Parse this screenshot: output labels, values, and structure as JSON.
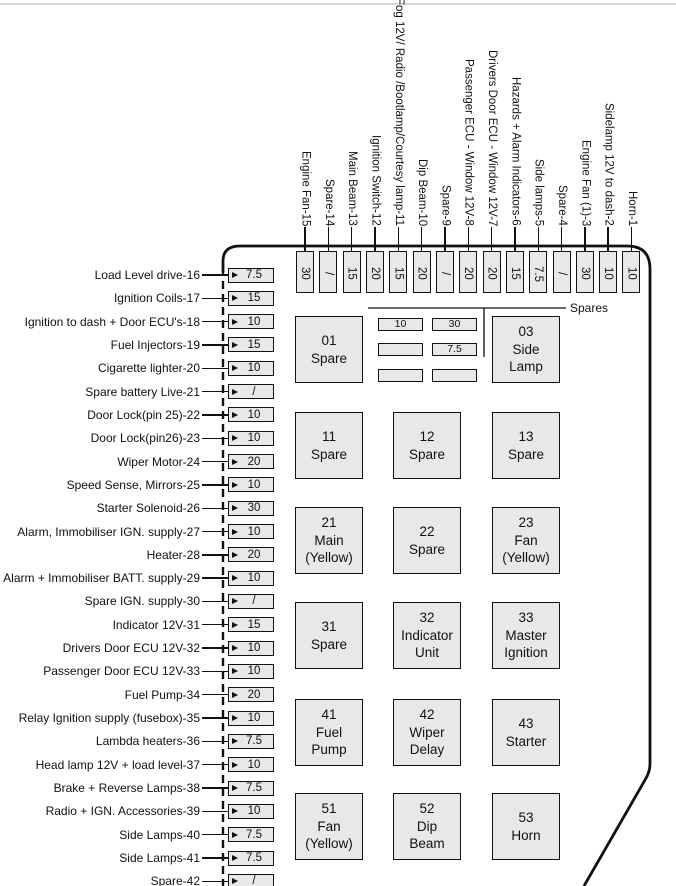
{
  "diagram": {
    "spares_label": "Spares",
    "colors": {
      "box_fill": "#e8e8e8",
      "line": "#111111",
      "page_rule": "#d9d9d9"
    },
    "left_fuses": [
      {
        "label": "Load Level drive-16",
        "value": "7.5"
      },
      {
        "label": "Ignition Coils-17",
        "value": "15"
      },
      {
        "label": "Ignition to dash + Door ECU's-18",
        "value": "10"
      },
      {
        "label": "Fuel Injectors-19",
        "value": "15"
      },
      {
        "label": "Cigarette lighter-20",
        "value": "10"
      },
      {
        "label": "Spare battery Live-21",
        "value": "/"
      },
      {
        "label": "Door Lock(pin 25)-22",
        "value": "10"
      },
      {
        "label": "Door Lock(pin26)-23",
        "value": "10"
      },
      {
        "label": "Wiper Motor-24",
        "value": "20"
      },
      {
        "label": "Speed Sense, Mirrors-25",
        "value": "10"
      },
      {
        "label": "Starter Solenoid-26",
        "value": "30"
      },
      {
        "label": "Alarm, Immobiliser IGN. supply-27",
        "value": "10"
      },
      {
        "label": "Heater-28",
        "value": "20"
      },
      {
        "label": "Alarm + Immobiliser BATT. supply-29",
        "value": "10"
      },
      {
        "label": "Spare IGN. supply-30",
        "value": "/"
      },
      {
        "label": "Indicator 12V-31",
        "value": "15"
      },
      {
        "label": "Drivers Door ECU 12V-32",
        "value": "10"
      },
      {
        "label": "Passenger Door ECU 12V-33",
        "value": "10"
      },
      {
        "label": "Fuel Pump-34",
        "value": "20"
      },
      {
        "label": "Relay Ignition supply (fusebox)-35",
        "value": "10"
      },
      {
        "label": "Lambda heaters-36",
        "value": "7.5"
      },
      {
        "label": "Head lamp 12V + load level-37",
        "value": "10"
      },
      {
        "label": "Brake + Reverse Lamps-38",
        "value": "7.5"
      },
      {
        "label": "Radio + IGN. Accessories-39",
        "value": "10"
      },
      {
        "label": "Side Lamps-40",
        "value": "7.5"
      },
      {
        "label": "Side Lamps-41",
        "value": "7.5"
      },
      {
        "label": "Spare-42",
        "value": "/"
      }
    ],
    "top_fuses": [
      {
        "label": "Engine Fan-15",
        "value": "30"
      },
      {
        "label": "Spare-14",
        "value": "/"
      },
      {
        "label": "Main Beam-13",
        "value": "15"
      },
      {
        "label": "Ignition Switch-12",
        "value": "20"
      },
      {
        "label": "Fog 12V/ Radio /Bootlamp/Courtesy lamp-11",
        "value": "15"
      },
      {
        "label": "Dip Beam-10",
        "value": "20"
      },
      {
        "label": "Spare-9",
        "value": "/"
      },
      {
        "label": "Passenger ECU - Window 12V-8",
        "value": "20"
      },
      {
        "label": "Drivers Door ECU - Window 12V-7",
        "value": "20"
      },
      {
        "label": "Hazards + Alarm Indicators-6",
        "value": "15"
      },
      {
        "label": "Side lamps-5",
        "value": "7.5"
      },
      {
        "label": "Spare-4",
        "value": "/"
      },
      {
        "label": "Engine Fan (1)-3",
        "value": "30"
      },
      {
        "label": "Sidelamp 12V to dash-2",
        "value": "10"
      },
      {
        "label": "Horn-1",
        "value": "10"
      }
    ],
    "relays": [
      {
        "id": "01",
        "lines": [
          "Spare"
        ],
        "col": 0,
        "row": 0
      },
      {
        "id": "03",
        "lines": [
          "Side",
          "Lamp"
        ],
        "col": 2,
        "row": 0
      },
      {
        "id": "11",
        "lines": [
          "Spare"
        ],
        "col": 0,
        "row": 1
      },
      {
        "id": "12",
        "lines": [
          "Spare"
        ],
        "col": 1,
        "row": 1
      },
      {
        "id": "13",
        "lines": [
          "Spare"
        ],
        "col": 2,
        "row": 1
      },
      {
        "id": "21",
        "lines": [
          "Main",
          "(Yellow)"
        ],
        "col": 0,
        "row": 2
      },
      {
        "id": "22",
        "lines": [
          "Spare"
        ],
        "col": 1,
        "row": 2
      },
      {
        "id": "23",
        "lines": [
          "Fan",
          "(Yellow)"
        ],
        "col": 2,
        "row": 2
      },
      {
        "id": "31",
        "lines": [
          "Spare"
        ],
        "col": 0,
        "row": 3
      },
      {
        "id": "32",
        "lines": [
          "Indicator",
          "Unit"
        ],
        "col": 1,
        "row": 3
      },
      {
        "id": "33",
        "lines": [
          "Master",
          "Ignition"
        ],
        "col": 2,
        "row": 3
      },
      {
        "id": "41",
        "lines": [
          "Fuel",
          "Pump"
        ],
        "col": 0,
        "row": 4
      },
      {
        "id": "42",
        "lines": [
          "Wiper",
          "Delay"
        ],
        "col": 1,
        "row": 4
      },
      {
        "id": "43",
        "lines": [
          "Starter"
        ],
        "col": 2,
        "row": 4
      },
      {
        "id": "51",
        "lines": [
          "Fan",
          "(Yellow)"
        ],
        "col": 0,
        "row": 5
      },
      {
        "id": "52",
        "lines": [
          "Dip",
          "Beam"
        ],
        "col": 1,
        "row": 5
      },
      {
        "id": "53",
        "lines": [
          "Horn"
        ],
        "col": 2,
        "row": 5
      }
    ],
    "spare_fuse_cells": [
      [
        "10",
        "30"
      ],
      [
        "",
        "7.5"
      ],
      [
        "",
        ""
      ]
    ]
  }
}
